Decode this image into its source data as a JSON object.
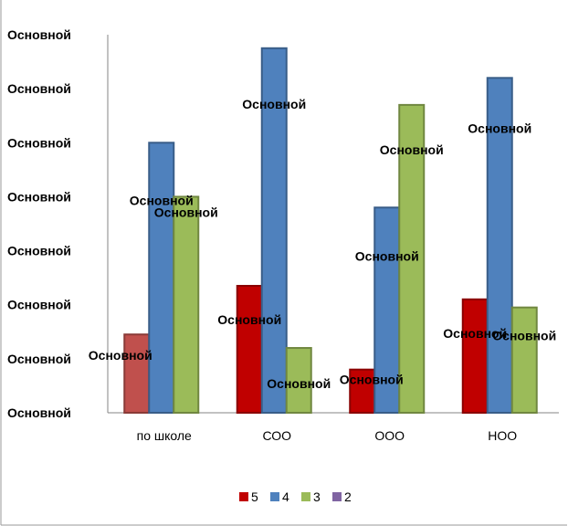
{
  "chart_data": {
    "type": "bar",
    "title": "",
    "xlabel": "",
    "ylabel": "",
    "y_tick_labels": [
      "Основной",
      "Основной",
      "Основной",
      "Основной",
      "Основной",
      "Основной",
      "Основной",
      "Основной"
    ],
    "categories": [
      "по школе",
      "СОО",
      "ООО",
      "НОО"
    ],
    "ylim": [
      0,
      7
    ],
    "grid": false,
    "legend_position": "bottom",
    "series": [
      {
        "name": "5",
        "color": "#c00000",
        "values": [
          1.45,
          2.35,
          0.8,
          2.1
        ],
        "labels": [
          "Основной",
          "Основной",
          "Основной",
          "Основной"
        ]
      },
      {
        "name": "4",
        "color": "#4f81bd",
        "values": [
          5.0,
          6.75,
          3.8,
          6.2
        ],
        "labels": [
          "Основной",
          "Основной",
          "Основной",
          "Основной"
        ]
      },
      {
        "name": "3",
        "color": "#9bbb59",
        "values": [
          4.0,
          1.2,
          5.7,
          1.95
        ],
        "labels": [
          "Основной",
          "Основной",
          "Основной",
          "Основной"
        ]
      },
      {
        "name": "2",
        "color": "#8064a2",
        "values": [
          0,
          0,
          0,
          0
        ],
        "labels": []
      }
    ]
  }
}
